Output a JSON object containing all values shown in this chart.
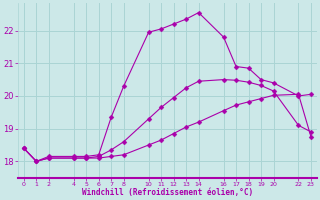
{
  "xlabel": "Windchill (Refroidissement éolien,°C)",
  "background_color": "#cce8e8",
  "grid_color": "#aad4d4",
  "line_color": "#aa00aa",
  "ylim": [
    17.5,
    22.85
  ],
  "xlim": [
    -0.5,
    23.5
  ],
  "yticks": [
    18,
    19,
    20,
    21,
    22
  ],
  "xticks": [
    0,
    1,
    2,
    4,
    5,
    6,
    7,
    8,
    10,
    11,
    12,
    13,
    14,
    16,
    17,
    18,
    19,
    20,
    22,
    23
  ],
  "series1_x": [
    0,
    1,
    2,
    4,
    5,
    6,
    7,
    8,
    10,
    11,
    12,
    13,
    14,
    16,
    17,
    18,
    19,
    20,
    22,
    23
  ],
  "series1_y": [
    18.4,
    18.0,
    18.1,
    18.1,
    18.1,
    18.1,
    18.15,
    18.2,
    18.5,
    18.65,
    18.85,
    19.05,
    19.2,
    19.55,
    19.72,
    19.82,
    19.92,
    20.02,
    20.05,
    18.75
  ],
  "series2_x": [
    0,
    1,
    2,
    4,
    5,
    6,
    7,
    8,
    10,
    11,
    12,
    13,
    14,
    16,
    17,
    18,
    19,
    20,
    22,
    23
  ],
  "series2_y": [
    18.4,
    18.0,
    18.1,
    18.1,
    18.1,
    18.15,
    18.35,
    18.6,
    19.3,
    19.65,
    19.95,
    20.25,
    20.45,
    20.5,
    20.48,
    20.42,
    20.32,
    20.15,
    19.1,
    18.9
  ],
  "series3_x": [
    0,
    1,
    2,
    4,
    5,
    6,
    7,
    8,
    10,
    11,
    12,
    13,
    14,
    16,
    17,
    18,
    19,
    20,
    22,
    23
  ],
  "series3_y": [
    18.4,
    18.0,
    18.15,
    18.15,
    18.15,
    18.2,
    19.35,
    20.3,
    21.95,
    22.05,
    22.2,
    22.35,
    22.55,
    21.8,
    20.9,
    20.85,
    20.5,
    20.4,
    20.0,
    20.05
  ]
}
